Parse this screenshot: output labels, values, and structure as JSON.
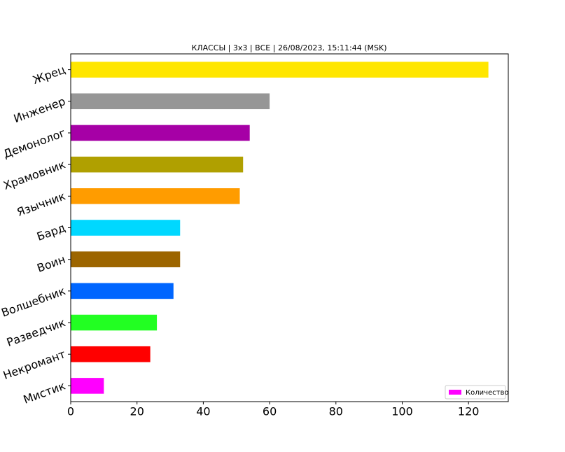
{
  "chart_data": {
    "type": "barh",
    "title": "КЛАССЫ | 3x3 | ВСЕ | 26/08/2023, 15:11:44 (MSK)",
    "categories": [
      "Мистик",
      "Некромант",
      "Разведчик",
      "Волшебник",
      "Воин",
      "Бард",
      "Язычник",
      "Храмовник",
      "Демонолог",
      "Инженер",
      "Жрец"
    ],
    "series": [
      {
        "name": "Количество",
        "values": [
          10,
          24,
          26,
          31,
          33,
          33,
          51,
          52,
          54,
          60,
          126
        ],
        "colors": [
          "#ff00ff",
          "#ff0000",
          "#22ff22",
          "#0066ff",
          "#9c6500",
          "#00d8ff",
          "#ff9c00",
          "#b0a000",
          "#a600a6",
          "#969696",
          "#ffe600"
        ]
      }
    ],
    "xlim": [
      0,
      132
    ],
    "xticks": [
      0,
      20,
      40,
      60,
      80,
      100,
      120
    ],
    "legend": "lower right"
  }
}
